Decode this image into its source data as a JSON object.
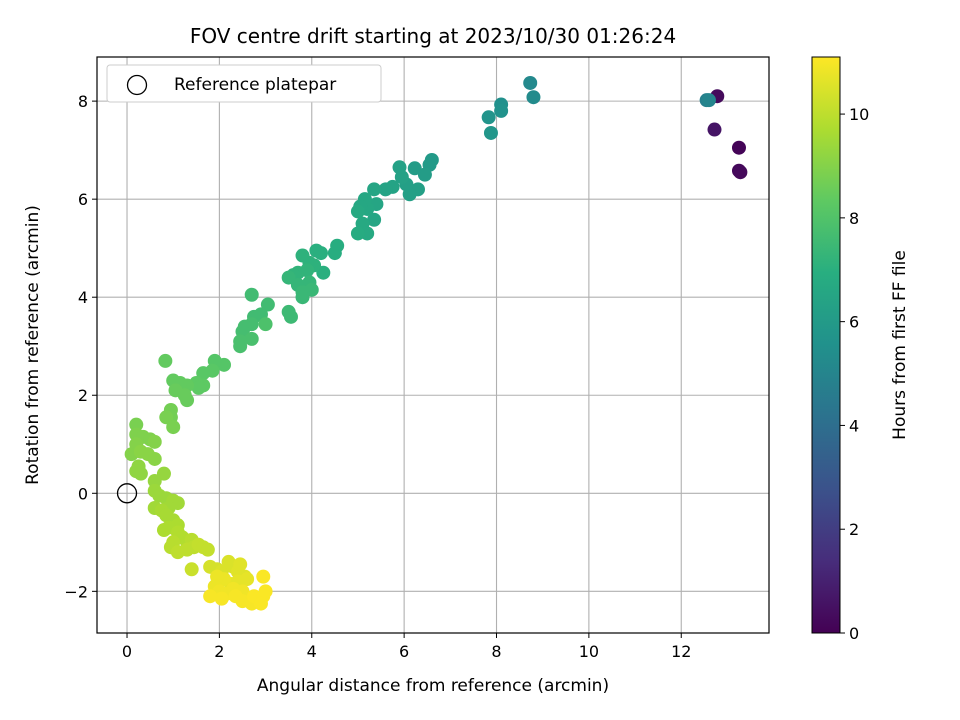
{
  "chart_data": {
    "type": "scatter",
    "title": "FOV centre drift starting at 2023/10/30 01:26:24",
    "xlabel": "Angular distance from reference (arcmin)",
    "ylabel": "Rotation from reference (arcmin)",
    "colorbar_label": "Hours from first FF file",
    "xlim": [
      -0.65,
      13.9
    ],
    "ylim": [
      -2.85,
      8.9
    ],
    "clim": [
      0,
      11.1
    ],
    "xticks": [
      0,
      2,
      4,
      6,
      8,
      10,
      12
    ],
    "yticks": [
      -2,
      0,
      2,
      4,
      6,
      8
    ],
    "cticks": [
      0,
      2,
      4,
      6,
      8,
      10
    ],
    "grid": true,
    "colormap": "viridis",
    "legend": {
      "position": "top-left",
      "entries": [
        {
          "label": "Reference platepar",
          "marker": "open-circle"
        }
      ]
    },
    "reference_point": {
      "x": 0,
      "y": 0
    },
    "points": [
      {
        "x": 12.78,
        "y": 8.1,
        "t": 0.3
      },
      {
        "x": 13.25,
        "y": 7.05,
        "t": 0.1
      },
      {
        "x": 13.25,
        "y": 6.58,
        "t": 0.2
      },
      {
        "x": 13.28,
        "y": 6.55,
        "t": 0.25
      },
      {
        "x": 12.72,
        "y": 7.42,
        "t": 0.6
      },
      {
        "x": 12.55,
        "y": 8.02,
        "t": 4.8
      },
      {
        "x": 12.6,
        "y": 8.02,
        "t": 5.0
      },
      {
        "x": 8.73,
        "y": 8.37,
        "t": 5.2
      },
      {
        "x": 8.8,
        "y": 8.08,
        "t": 5.3
      },
      {
        "x": 8.1,
        "y": 7.93,
        "t": 5.5
      },
      {
        "x": 8.1,
        "y": 7.8,
        "t": 5.6
      },
      {
        "x": 7.83,
        "y": 7.67,
        "t": 5.7
      },
      {
        "x": 7.88,
        "y": 7.35,
        "t": 5.8
      },
      {
        "x": 6.6,
        "y": 6.8,
        "t": 6.0
      },
      {
        "x": 6.55,
        "y": 6.7,
        "t": 6.0
      },
      {
        "x": 6.45,
        "y": 6.5,
        "t": 6.1
      },
      {
        "x": 6.23,
        "y": 6.63,
        "t": 6.1
      },
      {
        "x": 6.3,
        "y": 6.2,
        "t": 6.2
      },
      {
        "x": 6.12,
        "y": 6.1,
        "t": 6.2
      },
      {
        "x": 6.05,
        "y": 6.3,
        "t": 6.2
      },
      {
        "x": 5.95,
        "y": 6.45,
        "t": 6.3
      },
      {
        "x": 5.9,
        "y": 6.65,
        "t": 6.3
      },
      {
        "x": 5.75,
        "y": 6.25,
        "t": 6.4
      },
      {
        "x": 5.6,
        "y": 6.2,
        "t": 6.4
      },
      {
        "x": 5.35,
        "y": 6.2,
        "t": 6.5
      },
      {
        "x": 5.4,
        "y": 5.9,
        "t": 6.5
      },
      {
        "x": 5.35,
        "y": 5.58,
        "t": 6.5
      },
      {
        "x": 5.2,
        "y": 5.8,
        "t": 6.6
      },
      {
        "x": 5.15,
        "y": 6.0,
        "t": 6.6
      },
      {
        "x": 5.05,
        "y": 5.85,
        "t": 6.6
      },
      {
        "x": 5.0,
        "y": 5.75,
        "t": 6.7
      },
      {
        "x": 5.1,
        "y": 5.5,
        "t": 6.7
      },
      {
        "x": 5.2,
        "y": 5.3,
        "t": 6.7
      },
      {
        "x": 5.0,
        "y": 5.3,
        "t": 6.8
      },
      {
        "x": 4.55,
        "y": 5.05,
        "t": 6.9
      },
      {
        "x": 4.5,
        "y": 4.9,
        "t": 6.9
      },
      {
        "x": 4.2,
        "y": 4.9,
        "t": 7.0
      },
      {
        "x": 4.1,
        "y": 4.95,
        "t": 7.0
      },
      {
        "x": 4.25,
        "y": 4.5,
        "t": 7.0
      },
      {
        "x": 4.05,
        "y": 4.65,
        "t": 7.1
      },
      {
        "x": 3.95,
        "y": 4.7,
        "t": 7.1
      },
      {
        "x": 3.8,
        "y": 4.85,
        "t": 7.1
      },
      {
        "x": 3.9,
        "y": 4.55,
        "t": 7.2
      },
      {
        "x": 3.7,
        "y": 4.5,
        "t": 7.2
      },
      {
        "x": 3.6,
        "y": 4.45,
        "t": 7.2
      },
      {
        "x": 3.5,
        "y": 4.4,
        "t": 7.3
      },
      {
        "x": 3.7,
        "y": 4.25,
        "t": 7.3
      },
      {
        "x": 3.95,
        "y": 4.3,
        "t": 7.3
      },
      {
        "x": 4.0,
        "y": 4.15,
        "t": 7.4
      },
      {
        "x": 3.8,
        "y": 4.1,
        "t": 7.4
      },
      {
        "x": 3.8,
        "y": 4.0,
        "t": 7.4
      },
      {
        "x": 3.5,
        "y": 3.7,
        "t": 7.5
      },
      {
        "x": 3.55,
        "y": 3.6,
        "t": 7.5
      },
      {
        "x": 3.05,
        "y": 3.85,
        "t": 7.6
      },
      {
        "x": 2.9,
        "y": 3.65,
        "t": 7.6
      },
      {
        "x": 2.75,
        "y": 3.6,
        "t": 7.6
      },
      {
        "x": 2.7,
        "y": 3.45,
        "t": 7.7
      },
      {
        "x": 2.55,
        "y": 3.4,
        "t": 7.7
      },
      {
        "x": 2.5,
        "y": 3.3,
        "t": 7.7
      },
      {
        "x": 2.7,
        "y": 3.15,
        "t": 7.8
      },
      {
        "x": 2.45,
        "y": 3.1,
        "t": 7.8
      },
      {
        "x": 2.45,
        "y": 3.0,
        "t": 7.8
      },
      {
        "x": 3.0,
        "y": 3.45,
        "t": 7.9
      },
      {
        "x": 2.7,
        "y": 4.05,
        "t": 7.6
      },
      {
        "x": 2.1,
        "y": 2.62,
        "t": 8.1
      },
      {
        "x": 1.9,
        "y": 2.7,
        "t": 8.1
      },
      {
        "x": 1.85,
        "y": 2.5,
        "t": 8.2
      },
      {
        "x": 1.65,
        "y": 2.45,
        "t": 8.2
      },
      {
        "x": 1.65,
        "y": 2.2,
        "t": 8.3
      },
      {
        "x": 1.5,
        "y": 2.25,
        "t": 8.3
      },
      {
        "x": 1.55,
        "y": 2.15,
        "t": 8.3
      },
      {
        "x": 1.3,
        "y": 2.2,
        "t": 8.4
      },
      {
        "x": 1.15,
        "y": 2.25,
        "t": 8.4
      },
      {
        "x": 1.0,
        "y": 2.3,
        "t": 8.4
      },
      {
        "x": 1.05,
        "y": 2.1,
        "t": 8.5
      },
      {
        "x": 1.25,
        "y": 2.0,
        "t": 8.5
      },
      {
        "x": 1.3,
        "y": 1.9,
        "t": 8.5
      },
      {
        "x": 0.83,
        "y": 2.7,
        "t": 8.4
      },
      {
        "x": 0.95,
        "y": 1.7,
        "t": 8.7
      },
      {
        "x": 0.95,
        "y": 1.55,
        "t": 8.7
      },
      {
        "x": 0.85,
        "y": 1.55,
        "t": 8.8
      },
      {
        "x": 1.0,
        "y": 1.35,
        "t": 8.8
      },
      {
        "x": 0.2,
        "y": 1.4,
        "t": 8.8
      },
      {
        "x": 0.2,
        "y": 1.2,
        "t": 8.9
      },
      {
        "x": 0.35,
        "y": 1.15,
        "t": 8.9
      },
      {
        "x": 0.5,
        "y": 1.1,
        "t": 8.9
      },
      {
        "x": 0.6,
        "y": 1.05,
        "t": 9.0
      },
      {
        "x": 0.2,
        "y": 1.0,
        "t": 9.0
      },
      {
        "x": 0.1,
        "y": 0.8,
        "t": 9.0
      },
      {
        "x": 0.3,
        "y": 0.85,
        "t": 9.1
      },
      {
        "x": 0.45,
        "y": 0.8,
        "t": 9.1
      },
      {
        "x": 0.6,
        "y": 0.7,
        "t": 9.1
      },
      {
        "x": 0.25,
        "y": 0.55,
        "t": 9.2
      },
      {
        "x": 0.2,
        "y": 0.45,
        "t": 9.2
      },
      {
        "x": 0.3,
        "y": 0.4,
        "t": 9.2
      },
      {
        "x": 0.8,
        "y": 0.4,
        "t": 9.3
      },
      {
        "x": 0.6,
        "y": 0.25,
        "t": 9.3
      },
      {
        "x": 0.6,
        "y": 0.05,
        "t": 9.4
      },
      {
        "x": 0.7,
        "y": -0.05,
        "t": 9.4
      },
      {
        "x": 0.85,
        "y": -0.1,
        "t": 9.4
      },
      {
        "x": 1.0,
        "y": -0.15,
        "t": 9.5
      },
      {
        "x": 1.1,
        "y": -0.2,
        "t": 9.5
      },
      {
        "x": 0.9,
        "y": -0.3,
        "t": 9.5
      },
      {
        "x": 0.6,
        "y": -0.3,
        "t": 9.5
      },
      {
        "x": 0.75,
        "y": -0.35,
        "t": 9.6
      },
      {
        "x": 0.85,
        "y": -0.45,
        "t": 9.6
      },
      {
        "x": 1.0,
        "y": -0.55,
        "t": 9.6
      },
      {
        "x": 1.1,
        "y": -0.65,
        "t": 9.7
      },
      {
        "x": 0.9,
        "y": -0.7,
        "t": 9.7
      },
      {
        "x": 0.8,
        "y": -0.75,
        "t": 9.7
      },
      {
        "x": 1.1,
        "y": -0.8,
        "t": 9.8
      },
      {
        "x": 1.2,
        "y": -0.9,
        "t": 9.8
      },
      {
        "x": 1.3,
        "y": -1.0,
        "t": 9.8
      },
      {
        "x": 1.4,
        "y": -0.95,
        "t": 9.9
      },
      {
        "x": 1.0,
        "y": -1.0,
        "t": 9.9
      },
      {
        "x": 0.95,
        "y": -1.1,
        "t": 9.9
      },
      {
        "x": 1.1,
        "y": -1.2,
        "t": 10.0
      },
      {
        "x": 1.3,
        "y": -1.15,
        "t": 10.0
      },
      {
        "x": 1.45,
        "y": -1.1,
        "t": 10.0
      },
      {
        "x": 1.55,
        "y": -1.05,
        "t": 10.1
      },
      {
        "x": 1.65,
        "y": -1.1,
        "t": 10.1
      },
      {
        "x": 1.75,
        "y": -1.15,
        "t": 10.1
      },
      {
        "x": 1.4,
        "y": -1.55,
        "t": 10.2
      },
      {
        "x": 1.8,
        "y": -1.5,
        "t": 10.4
      },
      {
        "x": 1.95,
        "y": -1.55,
        "t": 10.4
      },
      {
        "x": 2.05,
        "y": -1.6,
        "t": 10.5
      },
      {
        "x": 2.2,
        "y": -1.4,
        "t": 10.5
      },
      {
        "x": 2.3,
        "y": -1.5,
        "t": 10.5
      },
      {
        "x": 2.4,
        "y": -1.6,
        "t": 10.6
      },
      {
        "x": 2.45,
        "y": -1.45,
        "t": 10.6
      },
      {
        "x": 2.55,
        "y": -1.7,
        "t": 10.6
      },
      {
        "x": 2.6,
        "y": -1.75,
        "t": 10.7
      },
      {
        "x": 2.4,
        "y": -1.8,
        "t": 10.7
      },
      {
        "x": 2.25,
        "y": -1.85,
        "t": 10.7
      },
      {
        "x": 2.1,
        "y": -1.75,
        "t": 10.8
      },
      {
        "x": 1.95,
        "y": -1.7,
        "t": 10.8
      },
      {
        "x": 1.9,
        "y": -1.9,
        "t": 10.8
      },
      {
        "x": 2.0,
        "y": -2.0,
        "t": 10.9
      },
      {
        "x": 2.15,
        "y": -2.05,
        "t": 10.9
      },
      {
        "x": 2.3,
        "y": -1.95,
        "t": 10.9
      },
      {
        "x": 2.5,
        "y": -2.0,
        "t": 10.9
      },
      {
        "x": 2.35,
        "y": -2.1,
        "t": 11.0
      },
      {
        "x": 2.05,
        "y": -2.15,
        "t": 11.0
      },
      {
        "x": 1.8,
        "y": -2.1,
        "t": 11.0
      },
      {
        "x": 2.5,
        "y": -2.2,
        "t": 11.0
      },
      {
        "x": 2.7,
        "y": -2.25,
        "t": 11.0
      },
      {
        "x": 2.75,
        "y": -2.1,
        "t": 11.05
      },
      {
        "x": 2.95,
        "y": -2.1,
        "t": 11.05
      },
      {
        "x": 3.0,
        "y": -2.0,
        "t": 11.05
      },
      {
        "x": 2.95,
        "y": -1.7,
        "t": 11.05
      },
      {
        "x": 2.9,
        "y": -2.25,
        "t": 11.05
      }
    ]
  }
}
